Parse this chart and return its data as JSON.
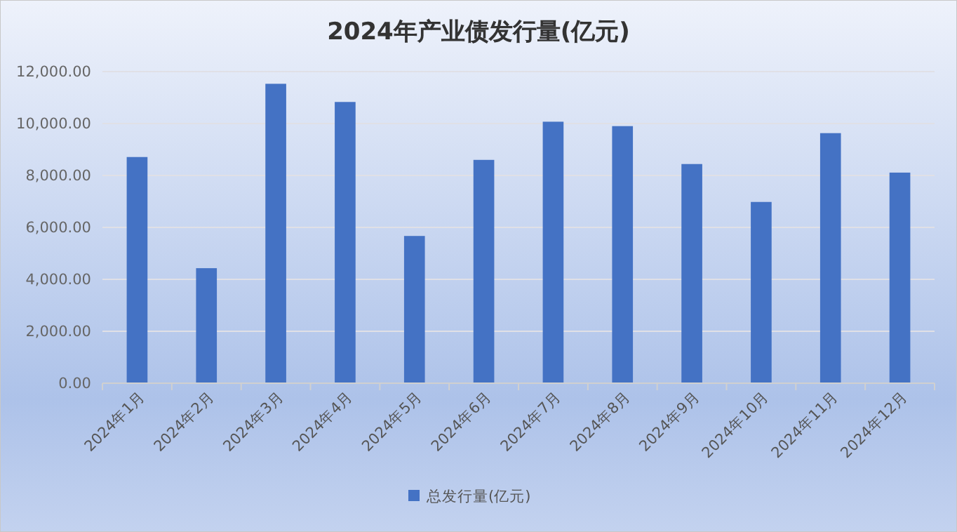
{
  "chart_data": {
    "type": "bar",
    "title": "2024年产业债发行量(亿元)",
    "categories": [
      "2024年1月",
      "2024年2月",
      "2024年3月",
      "2024年4月",
      "2024年5月",
      "2024年6月",
      "2024年7月",
      "2024年8月",
      "2024年9月",
      "2024年10月",
      "2024年11月",
      "2024年12月"
    ],
    "series": [
      {
        "name": "总发行量(亿元)",
        "color": "#4472c4",
        "values": [
          8710,
          4430,
          11530,
          10830,
          5670,
          8600,
          10070,
          9900,
          8440,
          6980,
          9630,
          8110
        ]
      }
    ],
    "ylim": [
      0,
      12000
    ],
    "yticks": [
      {
        "value": 0,
        "label": "0.00"
      },
      {
        "value": 2000,
        "label": "2,000.00"
      },
      {
        "value": 4000,
        "label": "4,000.00"
      },
      {
        "value": 6000,
        "label": "6,000.00"
      },
      {
        "value": 8000,
        "label": "8,000.00"
      },
      {
        "value": 10000,
        "label": "10,000.00"
      },
      {
        "value": 12000,
        "label": "12,000.00"
      }
    ],
    "grid": "y",
    "legend": "bottom"
  }
}
